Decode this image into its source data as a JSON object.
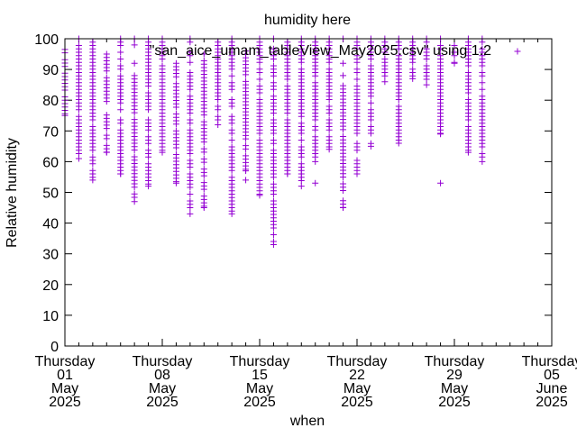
{
  "chart_data": {
    "type": "scatter",
    "title": "humidity here",
    "xlabel": "when",
    "ylabel": "Relative humidity",
    "ylim": [
      0,
      100
    ],
    "yticks": [
      "0",
      "10",
      "20",
      "30",
      "40",
      "50",
      "60",
      "70",
      "80",
      "90",
      "100"
    ],
    "xlim_days_from_2025_05_01": [
      0,
      35
    ],
    "xticks": [
      {
        "day": 0,
        "lines": [
          "Thursday",
          "01",
          "May",
          "2025"
        ]
      },
      {
        "day": 7,
        "lines": [
          "Thursday",
          "08",
          "May",
          "2025"
        ]
      },
      {
        "day": 14,
        "lines": [
          "Thursday",
          "15",
          "May",
          "2025"
        ]
      },
      {
        "day": 21,
        "lines": [
          "Thursday",
          "22",
          "May",
          "2025"
        ]
      },
      {
        "day": 28,
        "lines": [
          "Thursday",
          "29",
          "May",
          "2025"
        ]
      },
      {
        "day": 35,
        "lines": [
          "Thursday",
          "05",
          "June",
          "2025"
        ]
      }
    ],
    "legend": {
      "label": "\"san_aice_umam_tableView_May2025.csv\" using 1:2",
      "position": "top-right"
    },
    "series_color": "#9400d3",
    "daily_ranges": [
      {
        "day": 0,
        "min": 75,
        "max": 96.5,
        "outliers": []
      },
      {
        "day": 1,
        "min": 61,
        "max": 100,
        "outliers": []
      },
      {
        "day": 2,
        "min": 54,
        "max": 100,
        "outliers": []
      },
      {
        "day": 3,
        "min": 63,
        "max": 95,
        "outliers": []
      },
      {
        "day": 4,
        "min": 56,
        "max": 100,
        "outliers": []
      },
      {
        "day": 5,
        "min": 47,
        "max": 88,
        "outliers": [
          92,
          98,
          100
        ]
      },
      {
        "day": 6,
        "min": 52,
        "max": 100,
        "outliers": []
      },
      {
        "day": 7,
        "min": 63,
        "max": 100,
        "outliers": []
      },
      {
        "day": 8,
        "min": 53,
        "max": 92,
        "outliers": []
      },
      {
        "day": 9,
        "min": 43,
        "max": 100,
        "outliers": []
      },
      {
        "day": 10,
        "min": 45,
        "max": 95,
        "outliers": []
      },
      {
        "day": 11,
        "min": 72,
        "max": 100,
        "outliers": []
      },
      {
        "day": 12,
        "min": 43,
        "max": 100,
        "outliers": []
      },
      {
        "day": 13,
        "min": 57,
        "max": 96,
        "outliers": [
          54
        ]
      },
      {
        "day": 14,
        "min": 49,
        "max": 100,
        "outliers": []
      },
      {
        "day": 15,
        "min": 33,
        "max": 100,
        "outliers": []
      },
      {
        "day": 16,
        "min": 56,
        "max": 100,
        "outliers": []
      },
      {
        "day": 17,
        "min": 52,
        "max": 100,
        "outliers": []
      },
      {
        "day": 18,
        "min": 60,
        "max": 100,
        "outliers": [
          53
        ]
      },
      {
        "day": 19,
        "min": 64,
        "max": 100,
        "outliers": []
      },
      {
        "day": 20,
        "min": 45,
        "max": 88,
        "outliers": [
          92,
          100
        ]
      },
      {
        "day": 21,
        "min": 56,
        "max": 100,
        "outliers": []
      },
      {
        "day": 22,
        "min": 65,
        "max": 100,
        "outliers": []
      },
      {
        "day": 23,
        "min": 86,
        "max": 100,
        "outliers": []
      },
      {
        "day": 24,
        "min": 66,
        "max": 100,
        "outliers": []
      },
      {
        "day": 25,
        "min": 87,
        "max": 100,
        "outliers": []
      },
      {
        "day": 26,
        "min": 85,
        "max": 100,
        "outliers": []
      },
      {
        "day": 27,
        "min": 69,
        "max": 100,
        "outliers": [
          53
        ]
      },
      {
        "day": 28,
        "min": 92,
        "max": 100,
        "outliers": []
      },
      {
        "day": 29,
        "min": 63,
        "max": 100,
        "outliers": []
      },
      {
        "day": 30,
        "min": 60,
        "max": 100,
        "outliers": []
      }
    ]
  }
}
